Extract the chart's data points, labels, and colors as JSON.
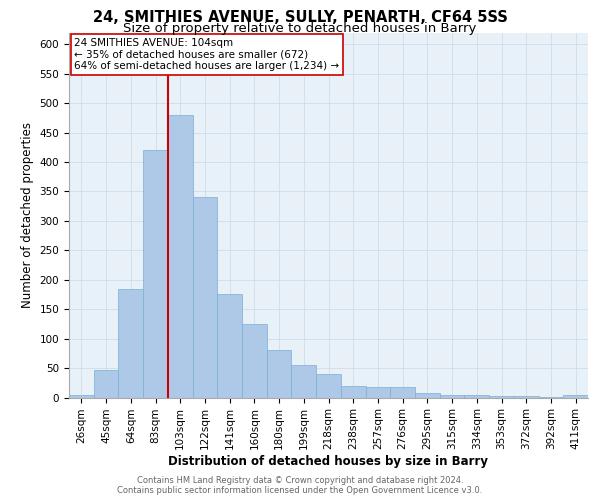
{
  "title1": "24, SMITHIES AVENUE, SULLY, PENARTH, CF64 5SS",
  "title2": "Size of property relative to detached houses in Barry",
  "xlabel": "Distribution of detached houses by size in Barry",
  "ylabel": "Number of detached properties",
  "categories": [
    "26sqm",
    "45sqm",
    "64sqm",
    "83sqm",
    "103sqm",
    "122sqm",
    "141sqm",
    "160sqm",
    "180sqm",
    "199sqm",
    "218sqm",
    "238sqm",
    "257sqm",
    "276sqm",
    "295sqm",
    "315sqm",
    "334sqm",
    "353sqm",
    "372sqm",
    "392sqm",
    "411sqm"
  ],
  "values": [
    5,
    47,
    185,
    420,
    480,
    340,
    175,
    125,
    80,
    55,
    40,
    20,
    18,
    18,
    7,
    5,
    5,
    2,
    2,
    1,
    5
  ],
  "bar_color": "#aec8e8",
  "bar_edge_color": "#7aafd4",
  "vline_color": "#cc0000",
  "vline_bar_index": 4,
  "annotation_text": "24 SMITHIES AVENUE: 104sqm\n← 35% of detached houses are smaller (672)\n64% of semi-detached houses are larger (1,234) →",
  "annotation_box_color": "#ffffff",
  "annotation_box_edge_color": "#cc0000",
  "grid_color": "#ccd8e8",
  "background_color": "#e8f0f8",
  "ylim": [
    0,
    620
  ],
  "yticks": [
    0,
    50,
    100,
    150,
    200,
    250,
    300,
    350,
    400,
    450,
    500,
    550,
    600
  ],
  "footnote1": "Contains HM Land Registry data © Crown copyright and database right 2024.",
  "footnote2": "Contains public sector information licensed under the Open Government Licence v3.0.",
  "title1_fontsize": 10.5,
  "title2_fontsize": 9.5,
  "ylabel_fontsize": 8.5,
  "tick_fontsize": 7.5,
  "annot_fontsize": 7.5,
  "footnote_fontsize": 6.0
}
